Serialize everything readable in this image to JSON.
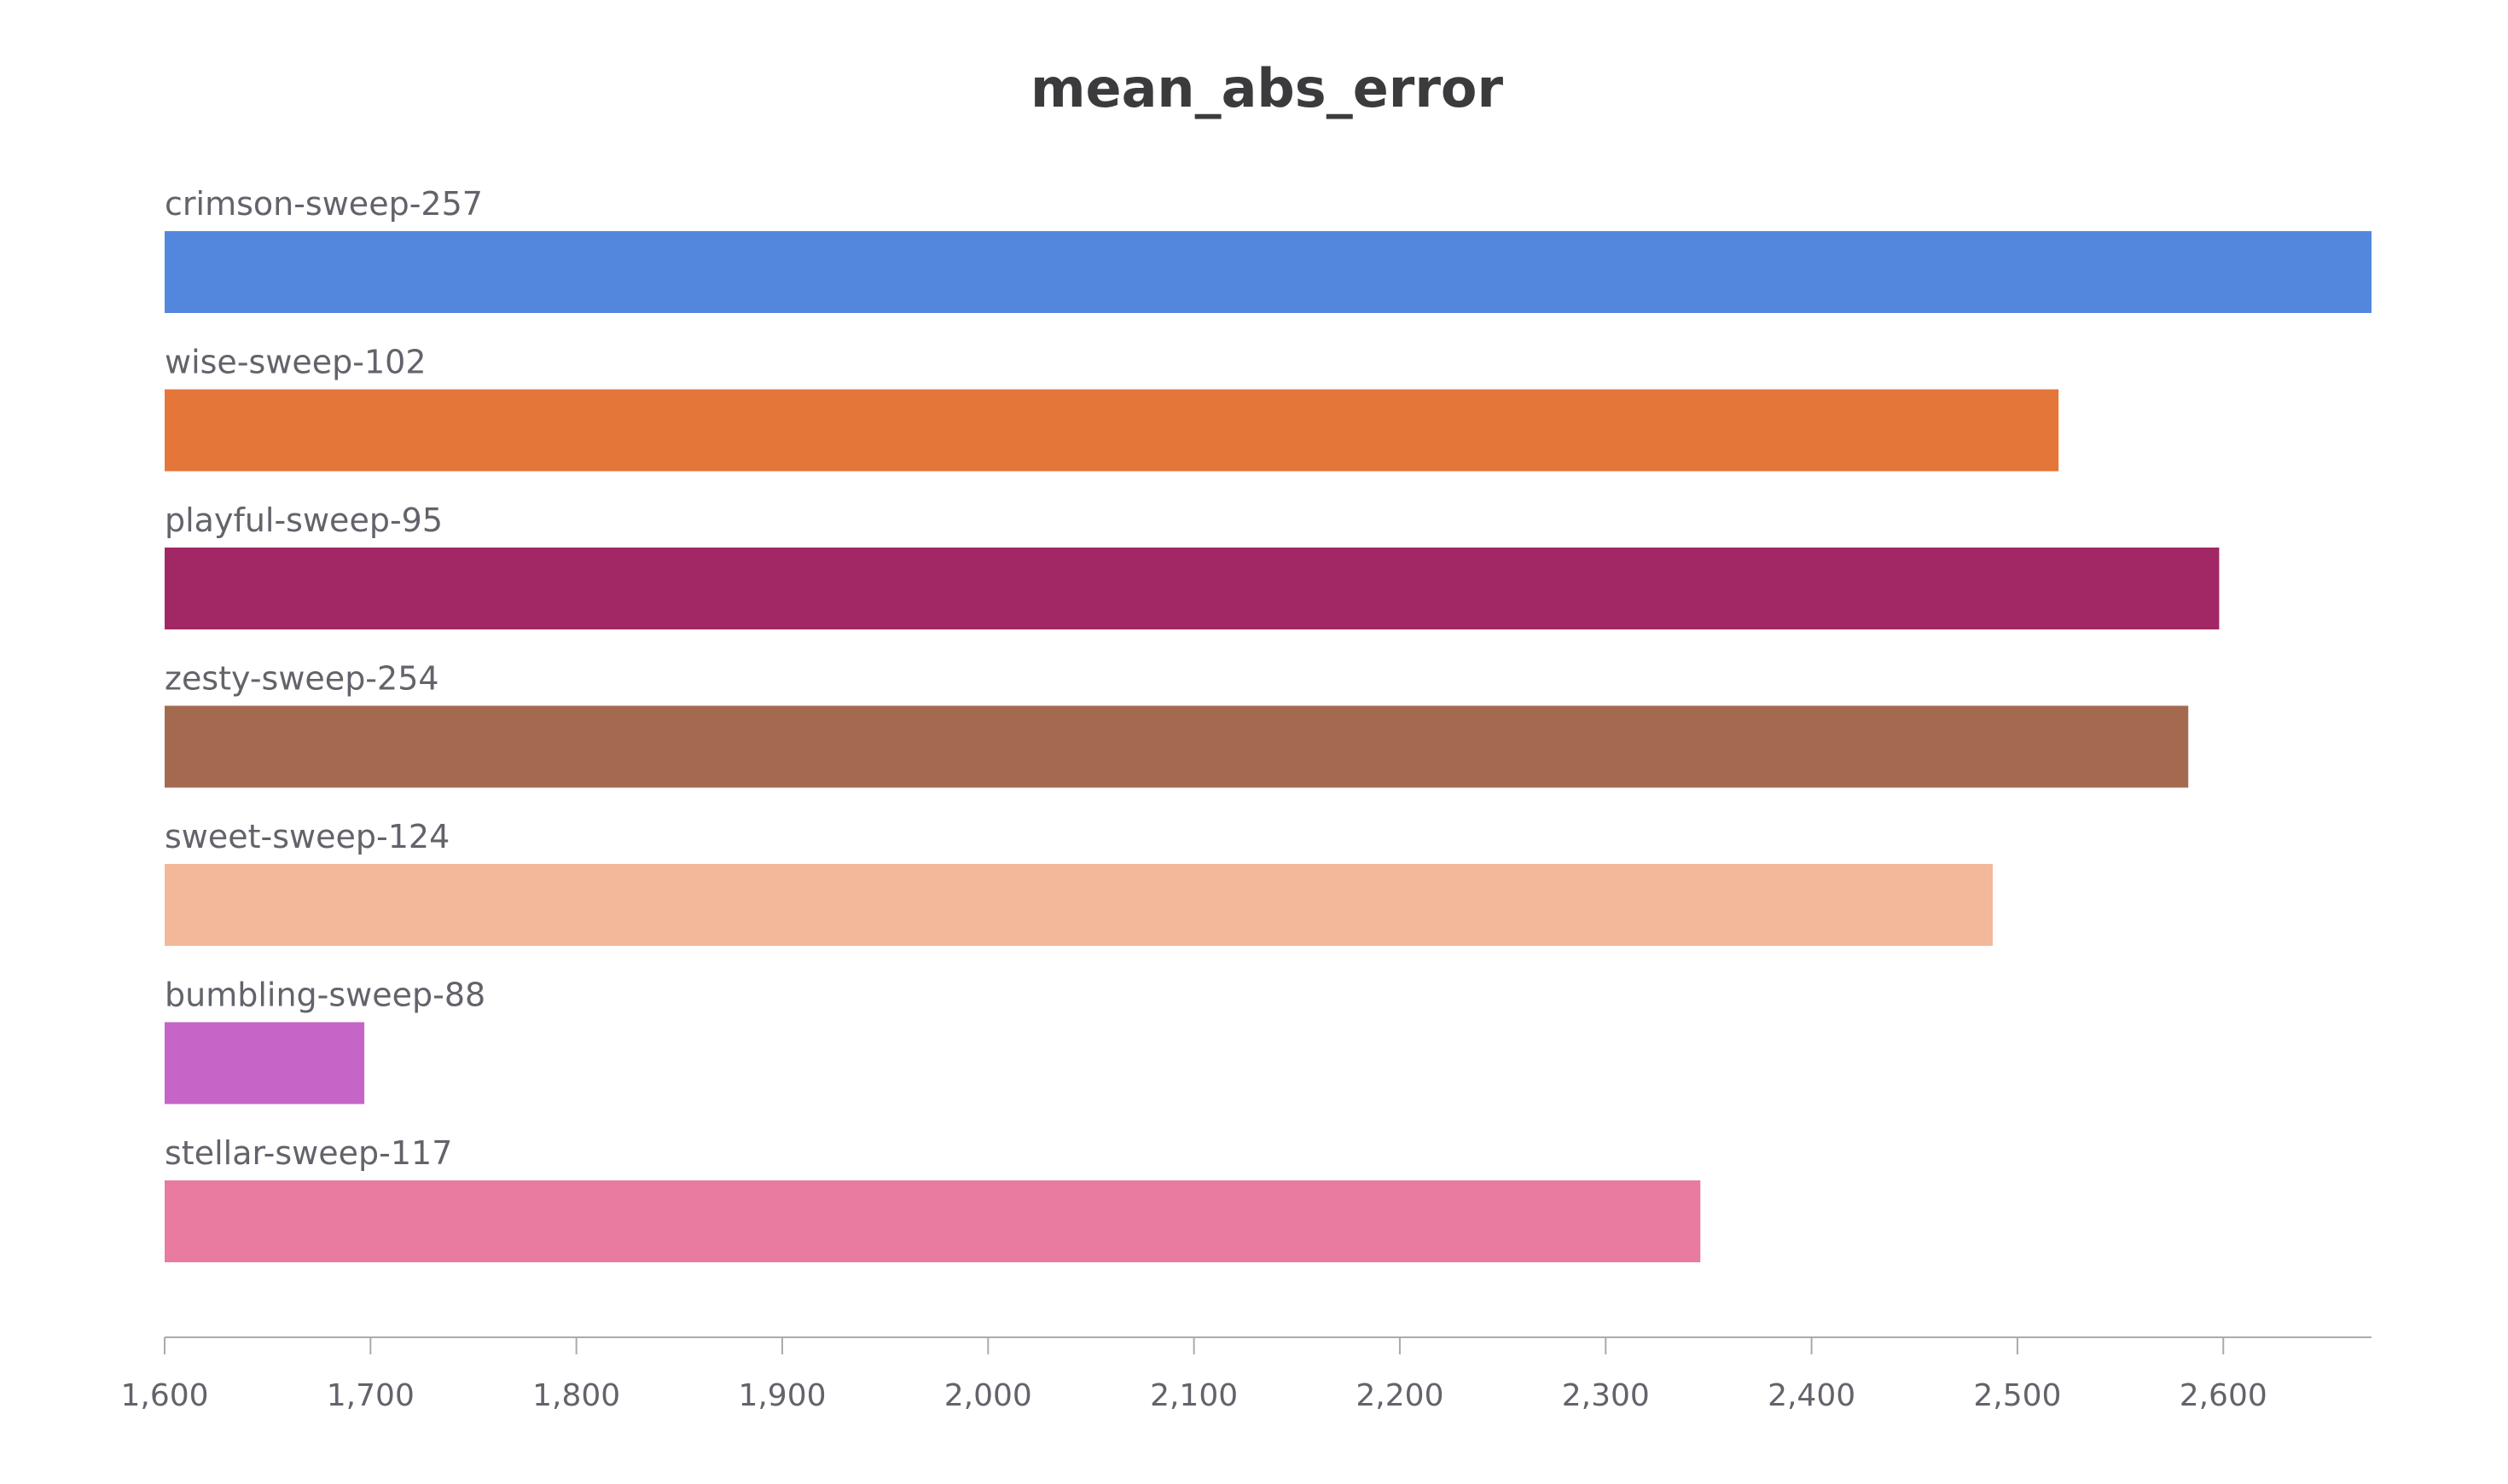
{
  "chart_data": {
    "type": "bar",
    "orientation": "horizontal",
    "title": "mean_abs_error",
    "xlabel": "",
    "ylabel": "",
    "xlim": [
      1600,
      2672
    ],
    "xticks": [
      1600,
      1700,
      1800,
      1900,
      2000,
      2100,
      2200,
      2300,
      2400,
      2500,
      2600
    ],
    "xtick_labels": [
      "1,600",
      "1,700",
      "1,800",
      "1,900",
      "2,000",
      "2,100",
      "2,200",
      "2,300",
      "2,400",
      "2,500",
      "2,600"
    ],
    "grid": false,
    "legend": "none",
    "categories": [
      "crimson-sweep-257",
      "wise-sweep-102",
      "playful-sweep-95",
      "zesty-sweep-254",
      "sweet-sweep-124",
      "bumbling-sweep-88",
      "stellar-sweep-117"
    ],
    "values": [
      2672,
      2520,
      2598,
      2583,
      2488,
      1697,
      2346
    ],
    "colors": [
      "#5387dd",
      "#e5763a",
      "#a12864",
      "#a46a4f",
      "#f2b899",
      "#c565c7",
      "#e87b9f"
    ]
  }
}
